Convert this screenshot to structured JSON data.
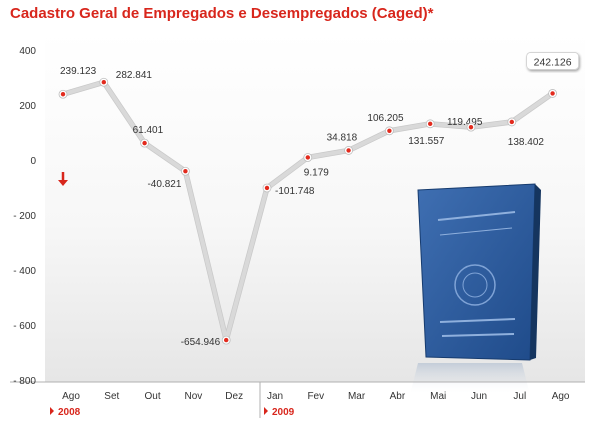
{
  "title": "Cadastro Geral de Empregados e Desempregados (Caged)*",
  "colors": {
    "title": "#d8261c",
    "accent": "#d8261c",
    "line": "#d9d9d9",
    "marker_fill": "#ffffff",
    "marker_center": "#e22a1d",
    "text": "#333333",
    "background_bottom": "#e8e8e8"
  },
  "chart_data": {
    "type": "line",
    "title": "Cadastro Geral de Empregados e Desempregados (Caged)*",
    "xlabel": "",
    "ylabel": "",
    "categories": [
      "Ago",
      "Set",
      "Out",
      "Nov",
      "Dez",
      "Jan",
      "Fev",
      "Mar",
      "Abr",
      "Mai",
      "Jun",
      "Jul",
      "Ago"
    ],
    "year_groups": [
      {
        "label": "2008",
        "categories": [
          "Ago",
          "Set",
          "Out",
          "Nov",
          "Dez"
        ]
      },
      {
        "label": "2009",
        "categories": [
          "Jan",
          "Fev",
          "Mar",
          "Abr",
          "Mai",
          "Jun",
          "Jul",
          "Ago"
        ]
      }
    ],
    "values": [
      239123,
      282841,
      61401,
      -40821,
      -654946,
      -101748,
      9179,
      34818,
      106205,
      131557,
      119495,
      138402,
      242126
    ],
    "value_labels": [
      "239.123",
      "282.841",
      "61.401",
      "-40.821",
      "-654.946",
      "-101.748",
      "9.179",
      "34.818",
      "106.205",
      "131.557",
      "119.495",
      "138.402",
      "242.126"
    ],
    "y_axis_unit_note": "thousands",
    "yticks": [
      400,
      200,
      0,
      -200,
      -400,
      -600,
      -800
    ],
    "ytick_labels": [
      "400",
      "200",
      "0",
      "- 200",
      "- 400",
      "- 600",
      "- 800"
    ],
    "ylim": [
      -800,
      400
    ],
    "grid": false,
    "legend": "none",
    "highlighted_label_index": 12,
    "decorations": [
      "down-arrow-icon",
      "work-card-photo"
    ]
  }
}
